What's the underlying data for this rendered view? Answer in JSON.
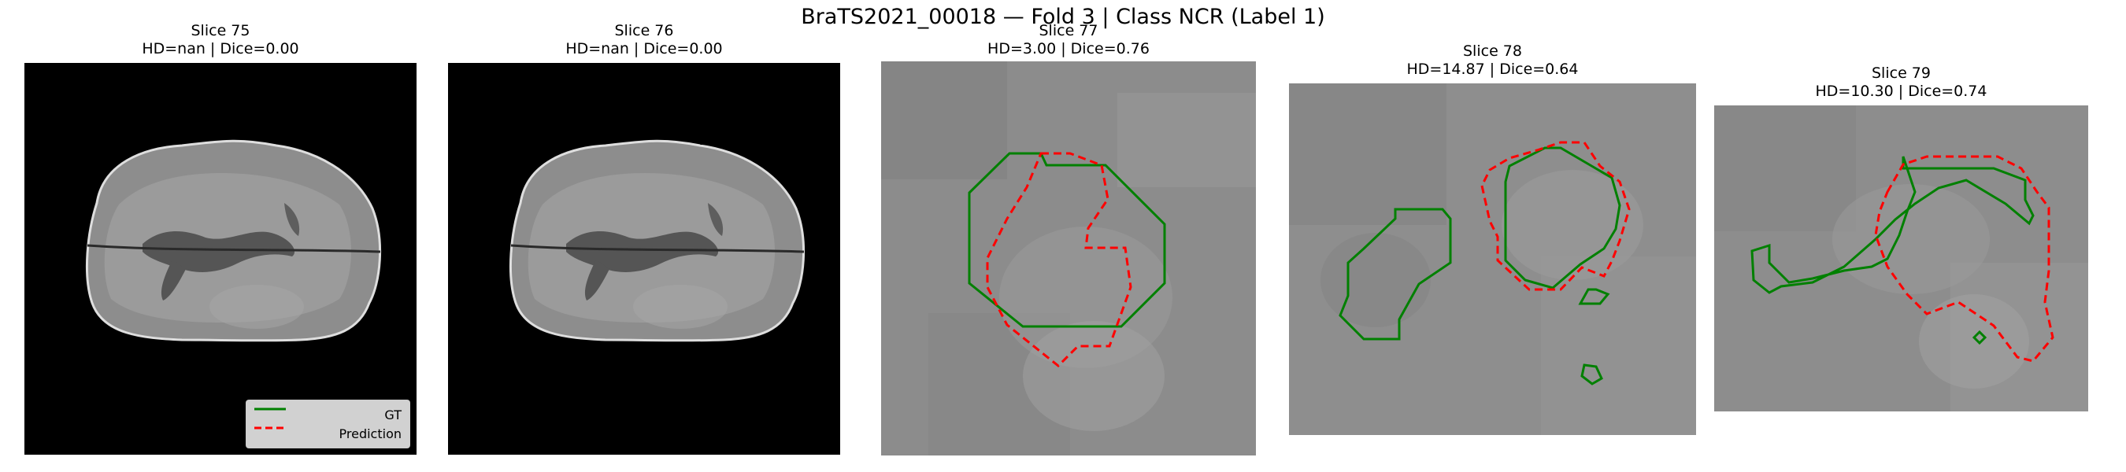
{
  "figure": {
    "title": "BraTS2021_00018 — Fold 3 | Class NCR (Label 1)"
  },
  "colors": {
    "ground_truth": "#008000",
    "prediction": "#ff0000",
    "background": "#000000"
  },
  "panels": [
    {
      "slice": "Slice 75",
      "metrics": "HD=nan | Dice=0.00"
    },
    {
      "slice": "Slice 76",
      "metrics": "HD=nan | Dice=0.00"
    },
    {
      "slice": "Slice 77",
      "metrics": "HD=3.00 | Dice=0.76"
    },
    {
      "slice": "Slice 78",
      "metrics": "HD=14.87 | Dice=0.64"
    },
    {
      "slice": "Slice 79",
      "metrics": "HD=10.30 | Dice=0.74"
    }
  ],
  "legend": {
    "gt_label": "GT",
    "pred_label": "Prediction"
  }
}
